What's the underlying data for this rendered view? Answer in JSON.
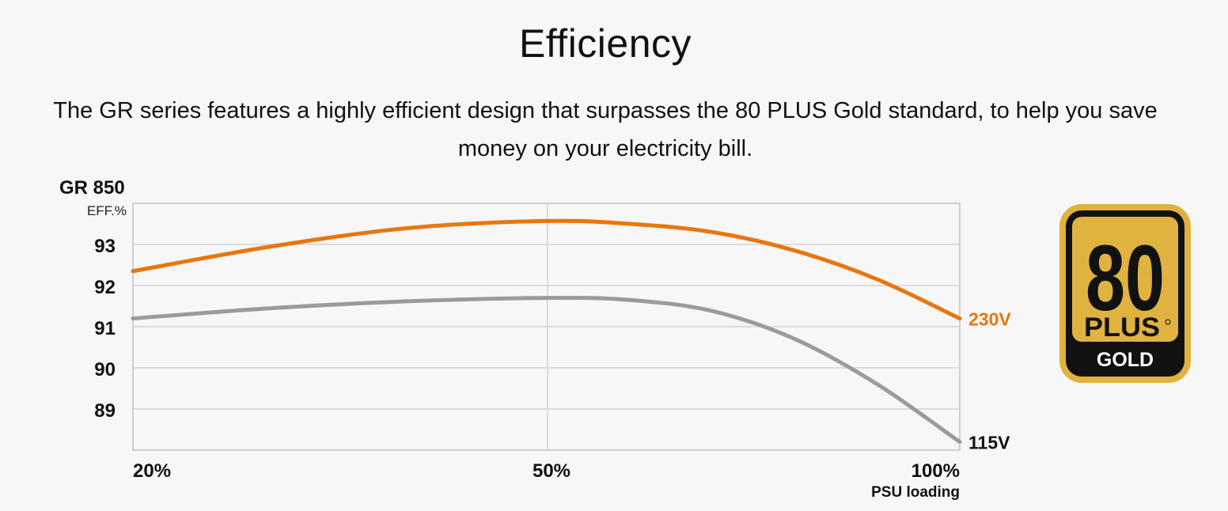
{
  "header": {
    "title": "Efficiency",
    "description": "The GR series features a highly efficient design that surpasses the 80 PLUS Gold standard, to help you save money on your electricity bill."
  },
  "chart_data": {
    "type": "line",
    "title": "GR 850",
    "ylabel": "EFF.%",
    "xlabel": "PSU loading",
    "x_ticks": [
      "20%",
      "50%",
      "100%"
    ],
    "y_ticks": [
      93,
      92,
      91,
      90,
      89
    ],
    "ylim": [
      88,
      94
    ],
    "grid": true,
    "series": [
      {
        "name": "230V",
        "color": "#e8760e",
        "points": [
          [
            20,
            92.35
          ],
          [
            30,
            92.95
          ],
          [
            40,
            93.4
          ],
          [
            50,
            93.57
          ],
          [
            60,
            93.5
          ],
          [
            70,
            93.3
          ],
          [
            80,
            92.85
          ],
          [
            90,
            92.15
          ],
          [
            100,
            91.2
          ]
        ]
      },
      {
        "name": "115V",
        "color": "#9b9b9b",
        "points": [
          [
            20,
            91.2
          ],
          [
            30,
            91.45
          ],
          [
            40,
            91.62
          ],
          [
            50,
            91.7
          ],
          [
            60,
            91.65
          ],
          [
            70,
            91.38
          ],
          [
            80,
            90.7
          ],
          [
            90,
            89.6
          ],
          [
            100,
            88.2
          ]
        ]
      }
    ]
  },
  "badge": {
    "number": "80",
    "plus": "PLUS",
    "tier": "GOLD",
    "gold_color": "#e0b23f",
    "dark_color": "#111111"
  }
}
